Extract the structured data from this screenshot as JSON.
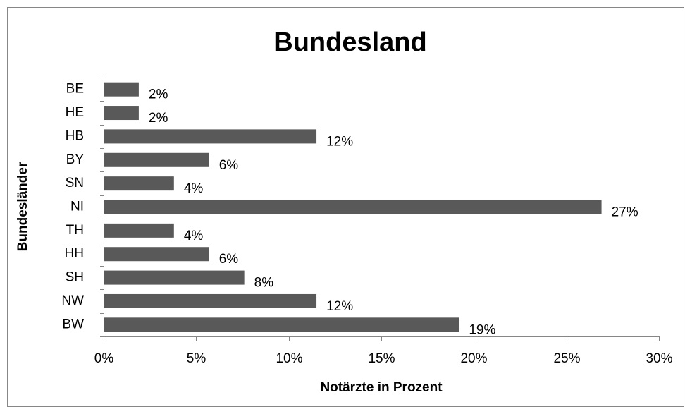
{
  "chart_data": {
    "type": "hbar",
    "title": "Bundesland",
    "x_label": "Notärzte in Prozent",
    "y_label": "Bundesländer",
    "categories": [
      "BE",
      "HE",
      "HB",
      "BY",
      "SN",
      "NI",
      "TH",
      "HH",
      "SH",
      "NW",
      "BW"
    ],
    "values": [
      1.9,
      1.9,
      11.5,
      5.7,
      3.8,
      26.9,
      3.8,
      5.7,
      7.6,
      11.5,
      19.2
    ],
    "value_labels": [
      "2%",
      "2%",
      "12%",
      "6%",
      "4%",
      "27%",
      "4%",
      "6%",
      "8%",
      "12%",
      "19%"
    ],
    "color": "#595959",
    "xlim": [
      0,
      30
    ],
    "xticks": [
      {
        "value": 0,
        "label": "0%"
      },
      {
        "value": 5,
        "label": "5%"
      },
      {
        "value": 10,
        "label": "10%"
      },
      {
        "value": 15,
        "label": "15%"
      },
      {
        "value": 20,
        "label": "20%"
      },
      {
        "value": 25,
        "label": "25%"
      },
      {
        "value": 30,
        "label": "30%"
      }
    ],
    "grid": false
  }
}
